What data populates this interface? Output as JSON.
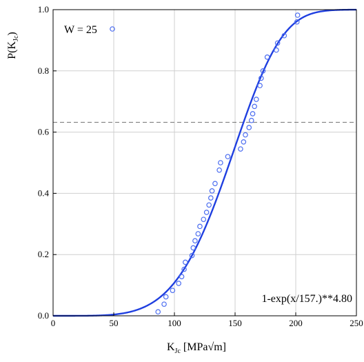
{
  "chart_data": {
    "type": "scatter",
    "xlabel": {
      "main": "K",
      "sub": "Jc",
      "suffix": " [MPa√m]"
    },
    "ylabel": {
      "prefix": "P(K",
      "sub": "Jc",
      "suffix": ")"
    },
    "xlim": [
      0,
      250
    ],
    "ylim": [
      0,
      1.0
    ],
    "xticks": [
      0,
      50,
      100,
      150,
      200,
      250
    ],
    "xtick_labels": [
      "0",
      "50",
      "100",
      "150",
      "200",
      "250"
    ],
    "yticks": [
      0,
      0.2,
      0.4,
      0.6,
      0.8,
      1.0
    ],
    "ytick_labels": [
      "0.0",
      "0.2",
      "0.4",
      "0.6",
      "0.8",
      "1.0"
    ],
    "grid": true,
    "legend": {
      "position": "top-left",
      "label": "W = 25"
    },
    "annotation": "1-exp(x/157.)**4.80",
    "reference_line": {
      "y": 0.632,
      "style": "dashed"
    },
    "fit_curve": {
      "x0": 157.0,
      "m": 4.8
    },
    "colors": {
      "series": "#1f3fe0",
      "points": "#4a6cf0",
      "grid": "#cfcfcf",
      "reference": "#707070"
    },
    "series": [
      {
        "x": [
          86.5,
          91.5,
          93.0,
          98.5,
          103.5,
          106.0,
          108.0,
          109.0,
          114.5,
          115.5,
          117.0,
          119.5,
          121.0,
          124.0,
          126.5,
          128.5,
          130.0,
          131.0,
          133.5,
          137.0,
          138.0,
          144.0,
          154.5,
          157.0,
          158.5,
          161.5,
          163.5,
          164.5,
          166.0,
          167.5,
          170.5,
          171.5,
          173.0,
          176.5,
          184.0,
          185.0,
          190.5,
          201.0,
          201.5
        ],
        "y": [
          0.013,
          0.038,
          0.062,
          0.083,
          0.106,
          0.128,
          0.152,
          0.175,
          0.197,
          0.222,
          0.245,
          0.268,
          0.292,
          0.315,
          0.338,
          0.362,
          0.385,
          0.408,
          0.432,
          0.476,
          0.5,
          0.52,
          0.545,
          0.568,
          0.591,
          0.615,
          0.638,
          0.66,
          0.684,
          0.707,
          0.752,
          0.776,
          0.8,
          0.845,
          0.868,
          0.891,
          0.915,
          0.96,
          0.982
        ]
      }
    ]
  }
}
